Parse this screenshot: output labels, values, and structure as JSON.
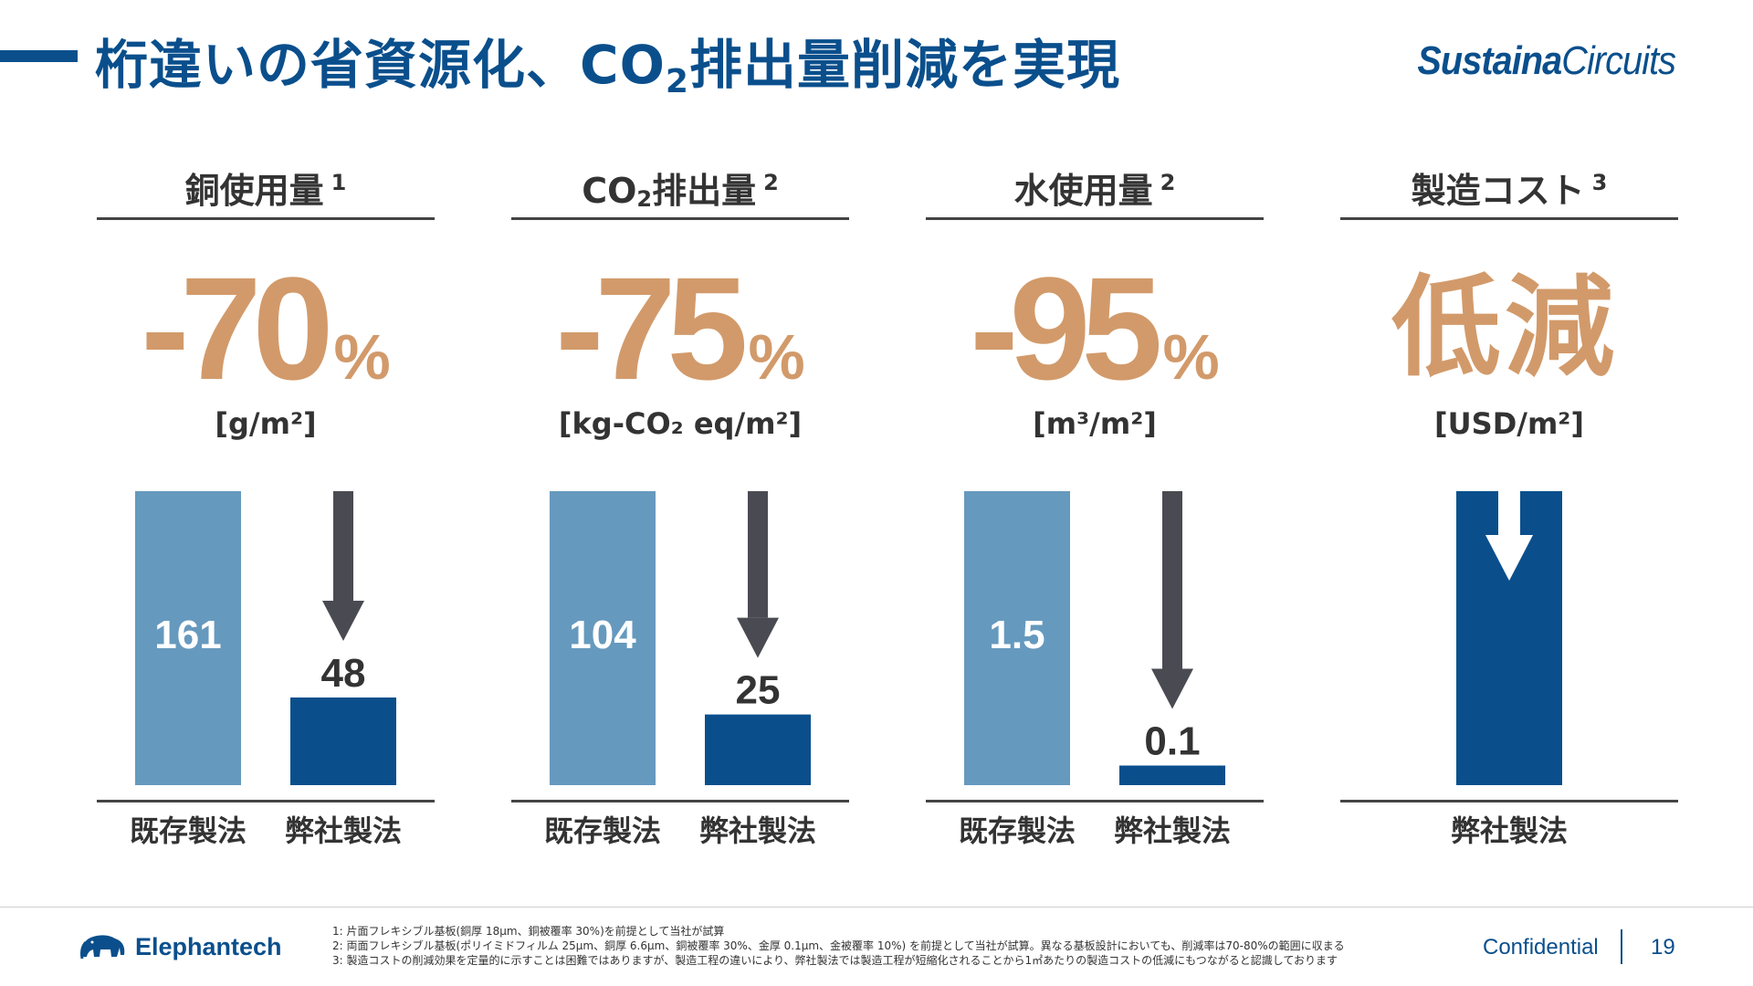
{
  "header": {
    "title_a": "桁違いの省資源化、CO",
    "title_sub": "2",
    "title_b": "排出量削減を実現",
    "logo_bold": "Sustaina",
    "logo_light": "Circuits"
  },
  "colors": {
    "primary_blue": "#0a4f8c",
    "light_blue": "#6699be",
    "arrow_gray": "#4a4a52",
    "accent_tan": "#d29a6a"
  },
  "chart_data": [
    {
      "type": "bar",
      "title_a": "銅使用量",
      "title_sub": "",
      "title_b": "",
      "footnote_ref": "1",
      "headline_value": "-70",
      "headline_unit": "%",
      "ylabel": "[g/m²]",
      "categories": [
        "既存製法",
        "弊社製法"
      ],
      "values": [
        161,
        48
      ],
      "value_labels": [
        "161",
        "48"
      ],
      "ylim": [
        0,
        161
      ]
    },
    {
      "type": "bar",
      "title_a": "CO",
      "title_sub": "2",
      "title_b": "排出量",
      "footnote_ref": "2",
      "headline_value": "-75",
      "headline_unit": "%",
      "ylabel": "[kg-CO₂ eq/m²]",
      "categories": [
        "既存製法",
        "弊社製法"
      ],
      "values": [
        104,
        25
      ],
      "value_labels": [
        "104",
        "25"
      ],
      "ylim": [
        0,
        104
      ]
    },
    {
      "type": "bar",
      "title_a": "水使用量",
      "title_sub": "",
      "title_b": "",
      "footnote_ref": "2",
      "headline_value": "-95",
      "headline_unit": "%",
      "ylabel": "[m³/m²]",
      "categories": [
        "既存製法",
        "弊社製法"
      ],
      "values": [
        1.5,
        0.1
      ],
      "value_labels": [
        "1.5",
        "0.1"
      ],
      "ylim": [
        0,
        1.5
      ]
    },
    {
      "type": "bar",
      "title_a": "製造コスト",
      "title_sub": "",
      "title_b": "",
      "footnote_ref": "3",
      "headline_value": "低減",
      "headline_unit": "",
      "ylabel": "[USD/m²]",
      "categories": [
        "弊社製法"
      ],
      "values": [
        1
      ],
      "value_labels": [
        ""
      ],
      "ylim": [
        0,
        1
      ]
    }
  ],
  "footer": {
    "company": "Elephantech",
    "notes": [
      "1: 片面フレキシブル基板(銅厚 18μm、銅被覆率 30%)を前提として当社が試算",
      "2: 両面フレキシブル基板(ポリイミドフィルム 25μm、銅厚 6.6μm、銅被覆率 30%、金厚 0.1μm、金被覆率 10%) を前提として当社が試算。異なる基板設計においても、削減率は70-80%の範囲に収まる",
      "3: 製造コストの削減効果を定量的に示すことは困難ではありますが、製造工程の違いにより、弊社製法では製造工程が短縮化されることから1㎡あたりの製造コストの低減にもつながると認識しております"
    ],
    "confidential": "Confidential",
    "page_number": "19"
  }
}
